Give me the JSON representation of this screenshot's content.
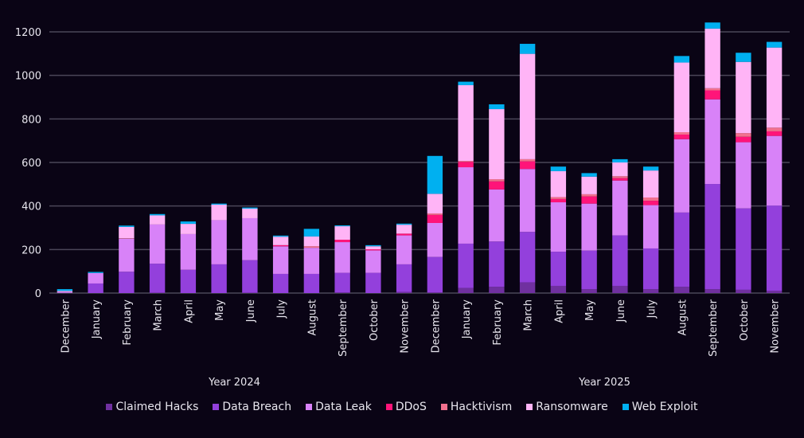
{
  "chart_data": {
    "type": "bar",
    "stacked": true,
    "title": "",
    "xlabel": "",
    "ylabel": "",
    "ylim": [
      0,
      1200
    ],
    "yticks": [
      "0",
      "200",
      "400",
      "600",
      "800",
      "1000",
      "1200"
    ],
    "grid": true,
    "legend_position": "bottom",
    "groups": [
      {
        "label": "Year 2024",
        "categories": [
          "December",
          "January",
          "February",
          "March",
          "April",
          "May",
          "June",
          "July",
          "August",
          "September",
          "October",
          "November"
        ]
      },
      {
        "label": "Year 2025",
        "categories": [
          "December",
          "January",
          "February",
          "March",
          "April",
          "May",
          "June",
          "July",
          "August",
          "September",
          "October",
          "November"
        ]
      }
    ],
    "categories": [
      "December",
      "January",
      "February",
      "March",
      "April",
      "May",
      "June",
      "July",
      "August",
      "September",
      "October",
      "November",
      "December",
      "January",
      "February",
      "March",
      "April",
      "May",
      "June",
      "July",
      "August",
      "September",
      "October",
      "November"
    ],
    "series": [
      {
        "name": "Claimed Hacks",
        "color": "#7030a0",
        "values": [
          1,
          0,
          0,
          2,
          0,
          0,
          2,
          0,
          0,
          3,
          0,
          5,
          3,
          23,
          29,
          49,
          33,
          18,
          33,
          18,
          29,
          18,
          15,
          11
        ]
      },
      {
        "name": "Data Breach",
        "color": "#9340dc",
        "values": [
          0,
          44,
          98,
          133,
          107,
          132,
          149,
          88,
          88,
          90,
          93,
          127,
          163,
          204,
          208,
          232,
          157,
          177,
          232,
          187,
          341,
          483,
          374,
          391
        ]
      },
      {
        "name": "Data Leak",
        "color": "#d882f8",
        "values": [
          5,
          48,
          152,
          180,
          164,
          203,
          193,
          127,
          120,
          141,
          103,
          133,
          156,
          351,
          239,
          289,
          227,
          216,
          252,
          199,
          337,
          389,
          304,
          320
        ]
      },
      {
        "name": "DDoS",
        "color": "#ff1479",
        "values": [
          0,
          0,
          0,
          0,
          0,
          0,
          0,
          5,
          0,
          11,
          5,
          8,
          37,
          25,
          37,
          35,
          15,
          33,
          11,
          20,
          21,
          41,
          25,
          21
        ]
      },
      {
        "name": "Hacktivism",
        "color": "#f2708f",
        "values": [
          0,
          0,
          2,
          0,
          0,
          0,
          0,
          0,
          7,
          0,
          0,
          0,
          7,
          4,
          10,
          10,
          9,
          10,
          9,
          15,
          11,
          10,
          17,
          17
        ]
      },
      {
        "name": "Ransomware",
        "color": "#ffb4f6",
        "values": [
          4,
          0,
          52,
          42,
          47,
          71,
          44,
          39,
          45,
          62,
          14,
          41,
          90,
          348,
          322,
          484,
          119,
          81,
          63,
          124,
          320,
          274,
          327,
          368
        ]
      },
      {
        "name": "Web Exploit",
        "color": "#00b0f0",
        "values": [
          8,
          5,
          6,
          6,
          11,
          5,
          5,
          5,
          35,
          4,
          5,
          5,
          174,
          16,
          22,
          46,
          21,
          16,
          15,
          18,
          30,
          28,
          42,
          26
        ]
      }
    ]
  }
}
